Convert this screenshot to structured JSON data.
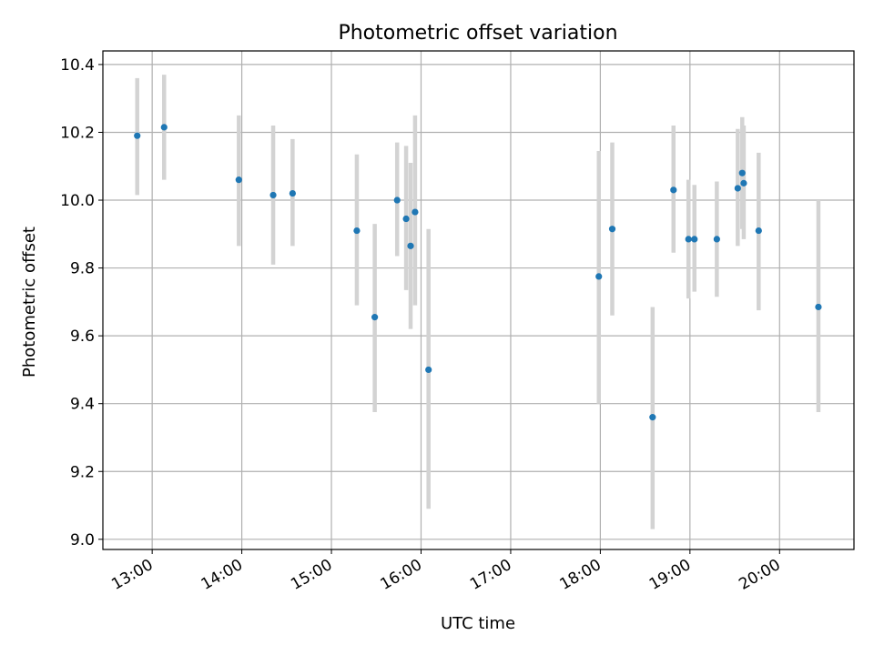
{
  "chart_data": {
    "type": "scatter",
    "title": "Photometric offset variation",
    "xlabel": "UTC time",
    "ylabel": "Photometric offset",
    "x_axis": "time",
    "x_ticks": [
      "13:00",
      "14:00",
      "15:00",
      "16:00",
      "17:00",
      "18:00",
      "19:00",
      "20:00"
    ],
    "x_tick_hours": [
      13,
      14,
      15,
      16,
      17,
      18,
      19,
      20
    ],
    "xlim_hours": [
      12.45,
      20.83
    ],
    "y_ticks": [
      "9.0",
      "9.2",
      "9.4",
      "9.6",
      "9.8",
      "10.0",
      "10.2",
      "10.4"
    ],
    "y_tick_values": [
      9.0,
      9.2,
      9.4,
      9.6,
      9.8,
      10.0,
      10.2,
      10.4
    ],
    "ylim": [
      8.97,
      10.44
    ],
    "grid": true,
    "point_color": "#1f77b4",
    "errorbar_color": "#d3d3d3",
    "points": [
      {
        "time": "12:50",
        "y": 10.19,
        "low": 10.015,
        "high": 10.36
      },
      {
        "time": "13:08",
        "y": 10.215,
        "low": 10.06,
        "high": 10.37
      },
      {
        "time": "13:58",
        "y": 10.06,
        "low": 9.865,
        "high": 10.25
      },
      {
        "time": "14:21",
        "y": 10.015,
        "low": 9.81,
        "high": 10.22
      },
      {
        "time": "14:34",
        "y": 10.02,
        "low": 9.865,
        "high": 10.18
      },
      {
        "time": "15:17",
        "y": 9.91,
        "low": 9.69,
        "high": 10.135
      },
      {
        "time": "15:29",
        "y": 9.655,
        "low": 9.375,
        "high": 9.93
      },
      {
        "time": "15:44",
        "y": 10.0,
        "low": 9.835,
        "high": 10.17
      },
      {
        "time": "15:50",
        "y": 9.945,
        "low": 9.735,
        "high": 10.16
      },
      {
        "time": "15:53",
        "y": 9.865,
        "low": 9.62,
        "high": 10.11
      },
      {
        "time": "15:56",
        "y": 9.965,
        "low": 9.69,
        "high": 10.25
      },
      {
        "time": "16:05",
        "y": 9.5,
        "low": 9.09,
        "high": 9.915
      },
      {
        "time": "17:59",
        "y": 9.775,
        "low": 9.4,
        "high": 10.145
      },
      {
        "time": "18:08",
        "y": 9.915,
        "low": 9.66,
        "high": 10.17
      },
      {
        "time": "18:35",
        "y": 9.36,
        "low": 9.03,
        "high": 9.685
      },
      {
        "time": "18:49",
        "y": 10.03,
        "low": 9.845,
        "high": 10.22
      },
      {
        "time": "18:59",
        "y": 9.885,
        "low": 9.71,
        "high": 10.06
      },
      {
        "time": "19:03",
        "y": 9.885,
        "low": 9.73,
        "high": 10.045
      },
      {
        "time": "19:18",
        "y": 9.885,
        "low": 9.715,
        "high": 10.055
      },
      {
        "time": "19:32",
        "y": 10.035,
        "low": 9.865,
        "high": 10.21
      },
      {
        "time": "19:35",
        "y": 10.08,
        "low": 9.915,
        "high": 10.245
      },
      {
        "time": "19:36",
        "y": 10.05,
        "low": 9.885,
        "high": 10.22
      },
      {
        "time": "19:46",
        "y": 9.91,
        "low": 9.675,
        "high": 10.14
      },
      {
        "time": "20:26",
        "y": 9.685,
        "low": 9.375,
        "high": 10.0
      }
    ]
  }
}
